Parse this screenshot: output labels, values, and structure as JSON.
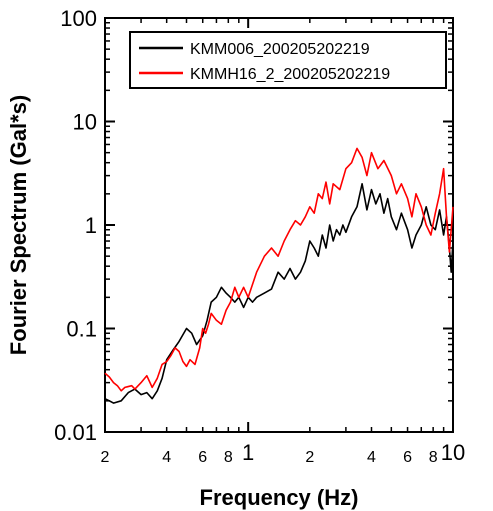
{
  "chart_data": {
    "type": "line",
    "xscale": "log",
    "yscale": "log",
    "xlim": [
      0.2,
      10
    ],
    "ylim": [
      0.01,
      100
    ],
    "xlabel": "Frequency (Hz)",
    "ylabel": "Fourier Spectrum (Gal*s)",
    "x_major_ticks": [
      {
        "value": 1,
        "label": "1"
      },
      {
        "value": 10,
        "label": "10"
      }
    ],
    "x_minor_ticks": [
      {
        "value": 0.2,
        "label": "2"
      },
      {
        "value": 0.4,
        "label": "4"
      },
      {
        "value": 0.6,
        "label": "6"
      },
      {
        "value": 0.8,
        "label": "8"
      },
      {
        "value": 2,
        "label": "2"
      },
      {
        "value": 4,
        "label": "4"
      },
      {
        "value": 6,
        "label": "6"
      },
      {
        "value": 8,
        "label": "8"
      }
    ],
    "y_major_ticks": [
      {
        "value": 0.01,
        "label": "0.01"
      },
      {
        "value": 0.1,
        "label": "0.1"
      },
      {
        "value": 1,
        "label": "1"
      },
      {
        "value": 10,
        "label": "10"
      },
      {
        "value": 100,
        "label": "100"
      }
    ],
    "legend_position": "top-right",
    "series": [
      {
        "name": "KMM006_200205202219",
        "color": "#000000",
        "x": [
          0.2,
          0.21,
          0.22,
          0.24,
          0.26,
          0.28,
          0.3,
          0.32,
          0.34,
          0.36,
          0.38,
          0.4,
          0.43,
          0.46,
          0.5,
          0.53,
          0.56,
          0.6,
          0.63,
          0.66,
          0.7,
          0.74,
          0.78,
          0.82,
          0.86,
          0.9,
          0.95,
          1.0,
          1.05,
          1.1,
          1.2,
          1.3,
          1.4,
          1.5,
          1.6,
          1.7,
          1.8,
          1.9,
          2.0,
          2.1,
          2.2,
          2.3,
          2.4,
          2.5,
          2.6,
          2.7,
          2.8,
          2.9,
          3.0,
          3.2,
          3.4,
          3.6,
          3.8,
          4.0,
          4.2,
          4.4,
          4.6,
          4.8,
          5.0,
          5.3,
          5.6,
          6.0,
          6.3,
          6.6,
          7.0,
          7.4,
          7.8,
          8.2,
          8.6,
          9.0,
          9.3,
          9.6,
          9.8,
          10.0
        ],
        "y": [
          0.021,
          0.02,
          0.019,
          0.02,
          0.024,
          0.026,
          0.023,
          0.024,
          0.021,
          0.025,
          0.033,
          0.05,
          0.062,
          0.075,
          0.1,
          0.09,
          0.07,
          0.085,
          0.12,
          0.18,
          0.2,
          0.25,
          0.22,
          0.2,
          0.18,
          0.2,
          0.16,
          0.2,
          0.18,
          0.2,
          0.22,
          0.24,
          0.35,
          0.3,
          0.38,
          0.3,
          0.35,
          0.45,
          0.7,
          0.6,
          0.5,
          0.8,
          0.6,
          1.0,
          0.7,
          0.9,
          0.8,
          1.0,
          0.85,
          1.2,
          1.5,
          2.5,
          1.4,
          2.2,
          1.6,
          2.0,
          1.3,
          1.8,
          1.2,
          0.9,
          1.3,
          0.9,
          0.6,
          0.8,
          1.0,
          1.5,
          1.0,
          0.9,
          1.4,
          0.8,
          1.2,
          0.6,
          0.35,
          0.7
        ]
      },
      {
        "name": "KMMH16_2_200205202219",
        "color": "#ff0000",
        "x": [
          0.2,
          0.21,
          0.22,
          0.23,
          0.24,
          0.25,
          0.27,
          0.28,
          0.3,
          0.32,
          0.34,
          0.36,
          0.38,
          0.4,
          0.42,
          0.44,
          0.46,
          0.48,
          0.5,
          0.52,
          0.55,
          0.58,
          0.6,
          0.62,
          0.64,
          0.66,
          0.7,
          0.74,
          0.78,
          0.82,
          0.86,
          0.9,
          0.95,
          1.0,
          1.1,
          1.2,
          1.3,
          1.4,
          1.5,
          1.6,
          1.7,
          1.8,
          1.9,
          2.0,
          2.1,
          2.2,
          2.3,
          2.4,
          2.5,
          2.6,
          2.8,
          3.0,
          3.2,
          3.4,
          3.6,
          3.8,
          4.0,
          4.3,
          4.6,
          5.0,
          5.3,
          5.6,
          6.0,
          6.3,
          6.6,
          7.0,
          7.4,
          7.8,
          8.2,
          8.6,
          9.0,
          9.3,
          9.6,
          10.0
        ],
        "y": [
          0.037,
          0.034,
          0.03,
          0.028,
          0.025,
          0.027,
          0.028,
          0.026,
          0.03,
          0.035,
          0.027,
          0.033,
          0.045,
          0.048,
          0.055,
          0.065,
          0.06,
          0.048,
          0.043,
          0.05,
          0.045,
          0.065,
          0.1,
          0.09,
          0.11,
          0.14,
          0.12,
          0.11,
          0.15,
          0.18,
          0.25,
          0.2,
          0.25,
          0.2,
          0.35,
          0.5,
          0.6,
          0.5,
          0.7,
          0.9,
          1.1,
          1.0,
          1.2,
          1.5,
          1.3,
          2.0,
          1.8,
          2.6,
          1.6,
          2.5,
          2.2,
          3.5,
          4.0,
          5.5,
          4.5,
          3.0,
          5.0,
          3.5,
          4.2,
          3.0,
          2.0,
          2.5,
          1.8,
          1.2,
          2.0,
          1.5,
          1.0,
          0.8,
          1.3,
          2.0,
          3.5,
          1.2,
          0.55,
          1.5
        ]
      }
    ]
  }
}
